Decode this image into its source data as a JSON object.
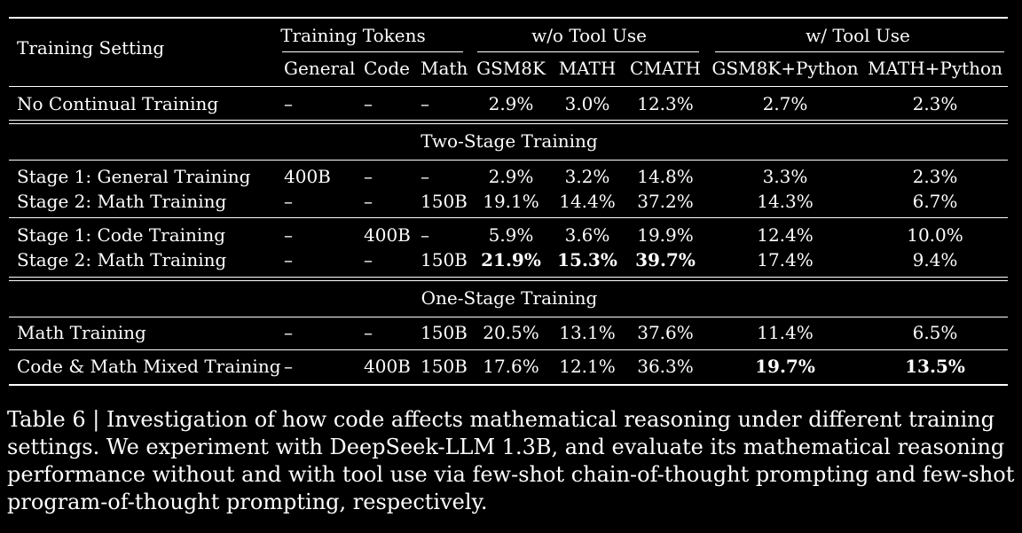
{
  "header": {
    "setting": "Training Setting",
    "tokens_group": "Training Tokens",
    "no_tool_group": "w/o Tool Use",
    "tool_group": "w/ Tool Use",
    "cols": [
      "General",
      "Code",
      "Math",
      "GSM8K",
      "MATH",
      "CMATH",
      "GSM8K+Python",
      "MATH+Python"
    ]
  },
  "sections": {
    "two_stage": "Two-Stage Training",
    "one_stage": "One-Stage Training"
  },
  "rows": [
    {
      "label": "No Continual Training",
      "cells": [
        "–",
        "–",
        "–",
        "2.9%",
        "3.0%",
        "12.3%",
        "2.7%",
        "2.3%"
      ]
    },
    {
      "label": "Stage 1: General Training",
      "cells": [
        "400B",
        "–",
        "–",
        "2.9%",
        "3.2%",
        "14.8%",
        "3.3%",
        "2.3%"
      ]
    },
    {
      "label": "Stage 2: Math Training",
      "cells": [
        "–",
        "–",
        "150B",
        "19.1%",
        "14.4%",
        "37.2%",
        "14.3%",
        "6.7%"
      ]
    },
    {
      "label": "Stage 1: Code Training",
      "cells": [
        "–",
        "400B",
        "–",
        "5.9%",
        "3.6%",
        "19.9%",
        "12.4%",
        "10.0%"
      ]
    },
    {
      "label": "Stage 2: Math Training",
      "cells": [
        "–",
        "–",
        "150B",
        "21.9%",
        "15.3%",
        "39.7%",
        "17.4%",
        "9.4%"
      ]
    },
    {
      "label": "Math Training",
      "cells": [
        "–",
        "–",
        "150B",
        "20.5%",
        "13.1%",
        "37.6%",
        "11.4%",
        "6.5%"
      ]
    },
    {
      "label": "Code & Math Mixed Training",
      "cells": [
        "–",
        "400B",
        "150B",
        "17.6%",
        "12.1%",
        "36.3%",
        "19.7%",
        "13.5%"
      ]
    }
  ],
  "caption": [
    "Table 6 | Investigation of how code affects mathematical reasoning under different training",
    "settings. We experiment with DeepSeek-LLM 1.3B, and evaluate its mathematical reasoning",
    "performance without and with tool use via few-shot chain-of-thought prompting and few-shot",
    "program-of-thought prompting, respectively."
  ]
}
